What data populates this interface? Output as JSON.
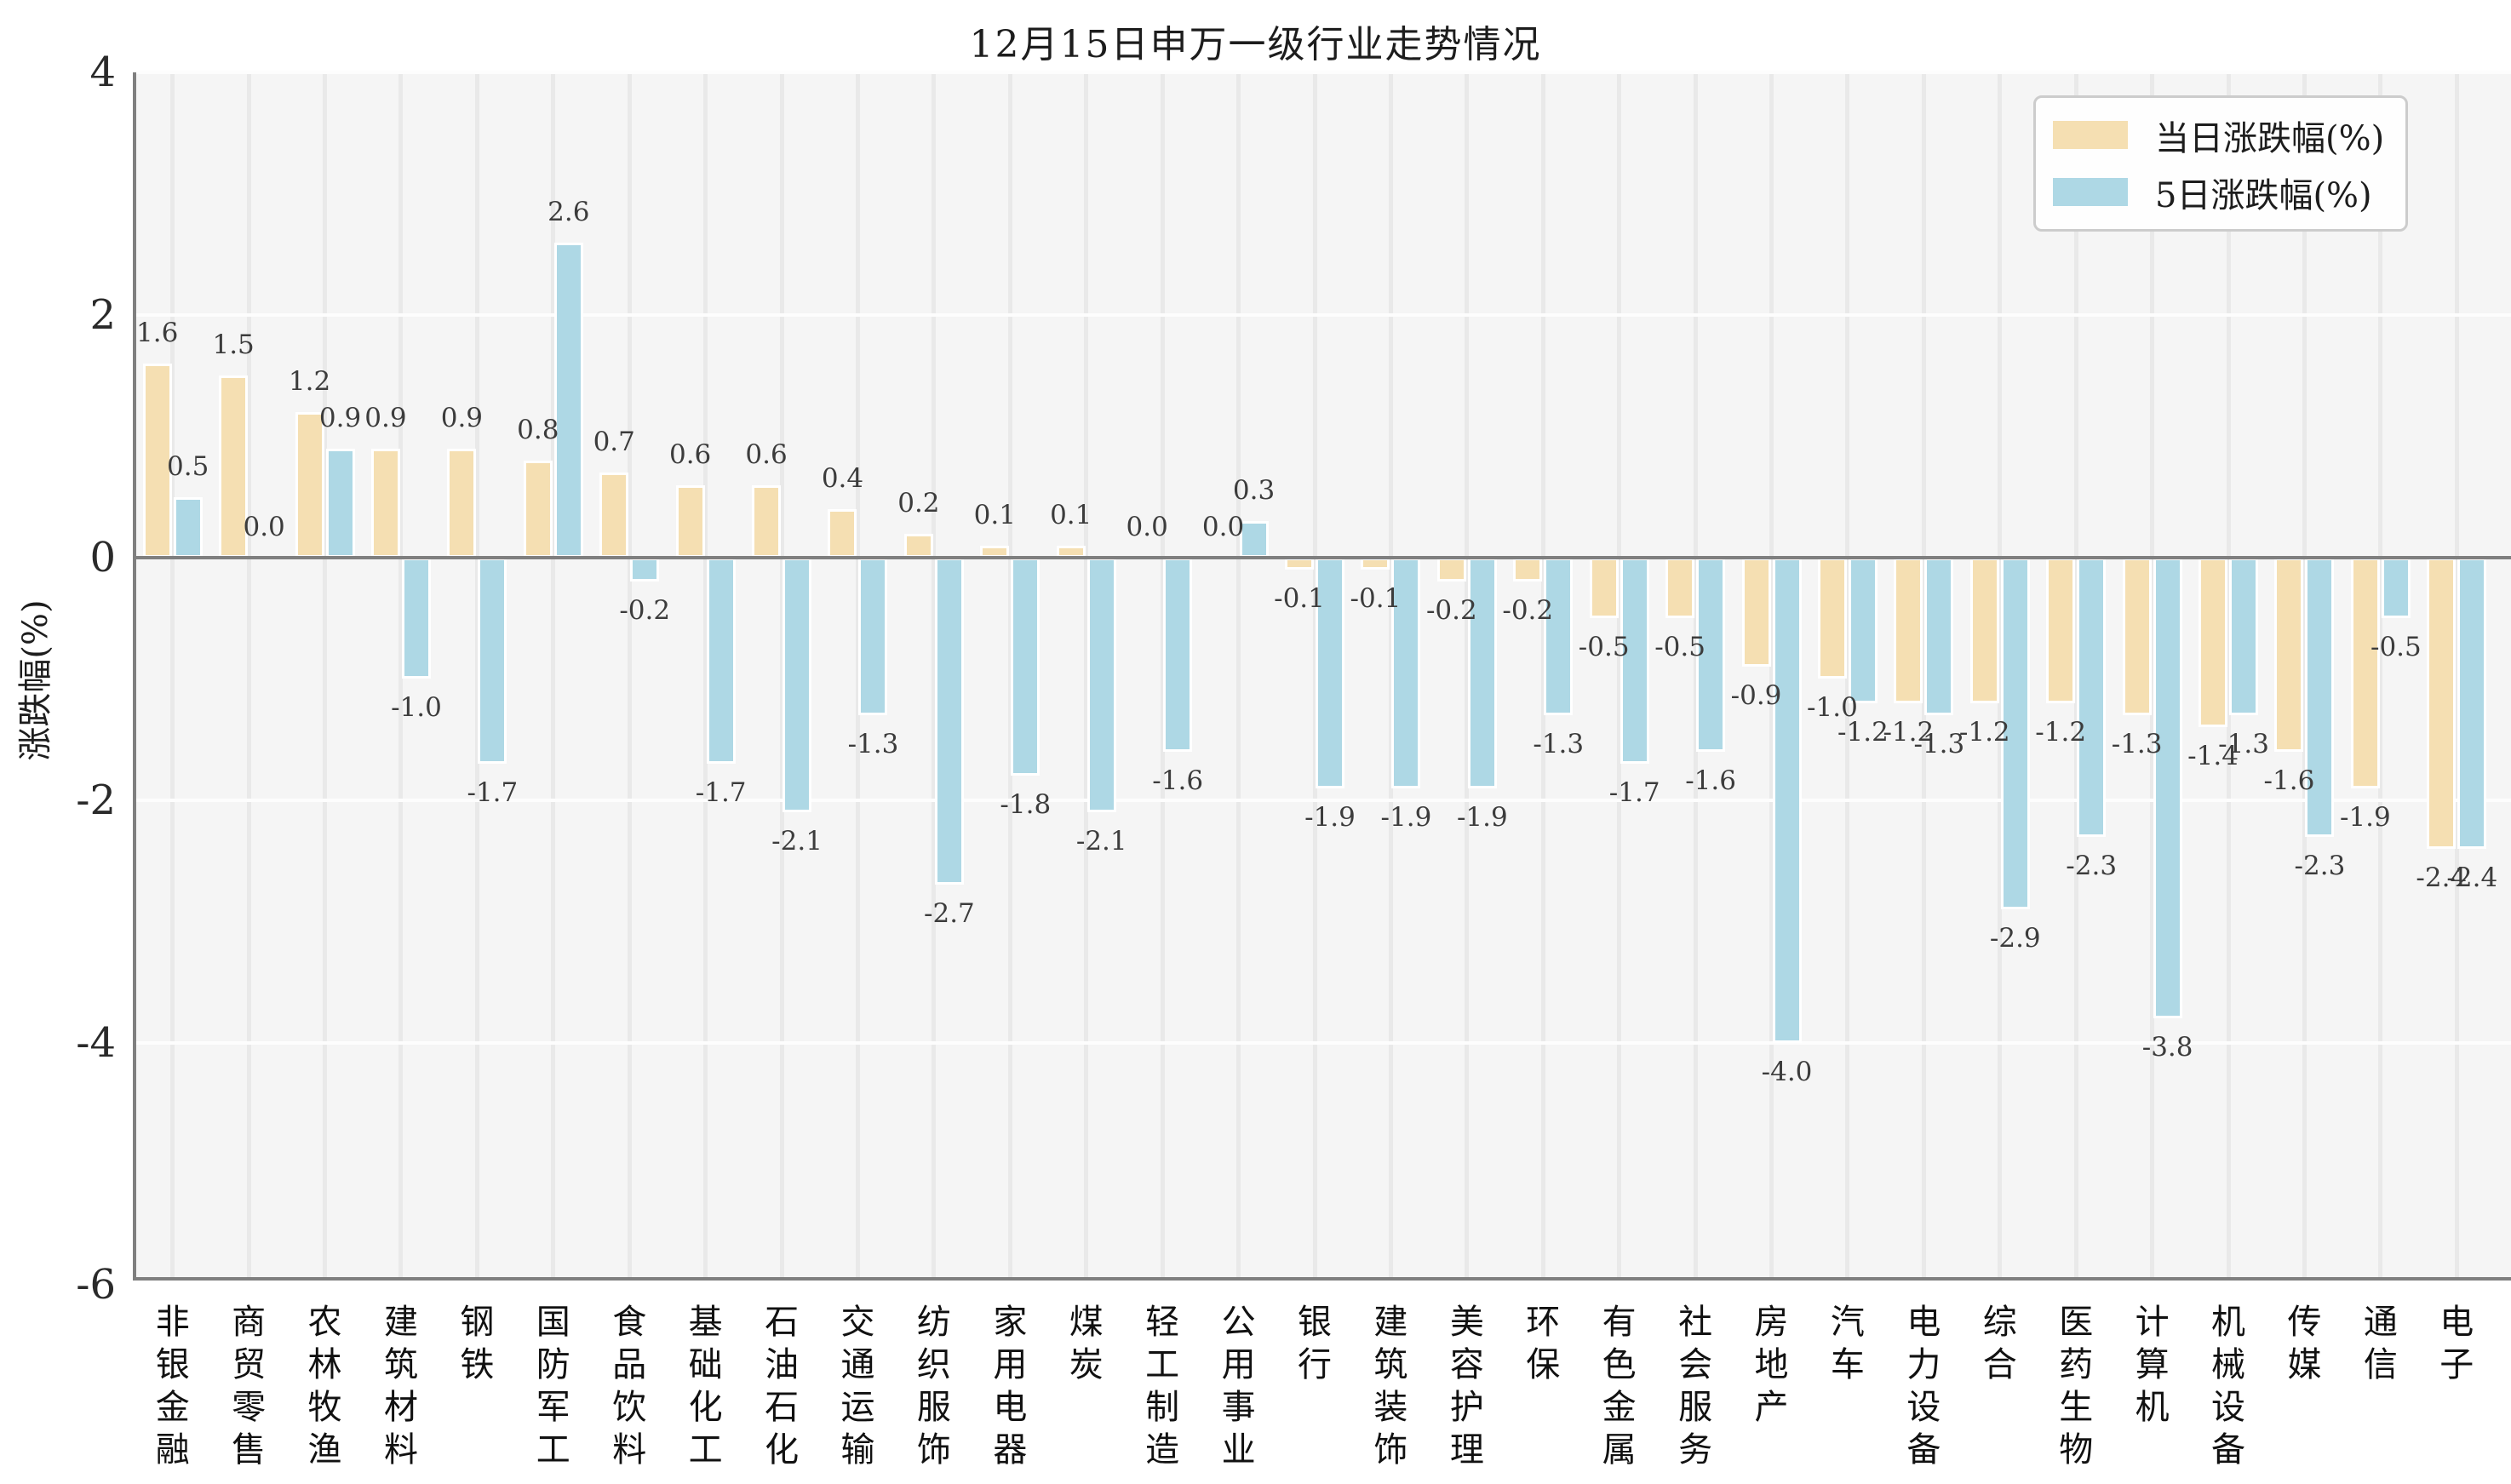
{
  "title": "12月15日申万一级行业走势情况",
  "y_axis_title": "涨跌幅(%)",
  "legend": [
    {
      "label": "当日涨跌幅(%)",
      "color": "#f5dfb2"
    },
    {
      "label": "5日涨跌幅(%)",
      "color": "#aed8e5"
    }
  ],
  "colors": {
    "daily_bar": "#f5dfb2",
    "five_day_bar": "#aed8e5",
    "plot_background": "#f5f5f5",
    "vertical_grid": "#e9e9e9",
    "horizontal_grid": "#fdfdfd",
    "axis_line": "#7f7f7f",
    "value_label_text": "#3c3c3c"
  },
  "chart_data": {
    "type": "bar",
    "title": "12月15日申万一级行业走势情况",
    "xlabel": "",
    "ylabel": "涨跌幅(%)",
    "ylim": [
      -6,
      4
    ],
    "yticks": [
      4,
      2,
      0,
      -2,
      -4,
      -6
    ],
    "grid": "vertical gridlines at each category; white horizontal gridlines at 2, -2, -4; gray zero line",
    "legend_position": "upper right",
    "bar_value_labels": "one decimal, above positive bars and below negative bars",
    "categories": [
      "非银金融",
      "商贸零售",
      "农林牧渔",
      "建筑材料",
      "钢铁",
      "国防军工",
      "食品饮料",
      "基础化工",
      "石油石化",
      "交通运输",
      "纺织服饰",
      "家用电器",
      "煤炭",
      "轻工制造",
      "公用事业",
      "银行",
      "建筑装饰",
      "美容护理",
      "环保",
      "有色金属",
      "社会服务",
      "房地产",
      "汽车",
      "电力设备",
      "综合",
      "医药生物",
      "计算机",
      "机械设备",
      "传媒",
      "通信",
      "电子"
    ],
    "series": [
      {
        "name": "当日涨跌幅(%)",
        "color": "#f5dfb2",
        "values": [
          1.6,
          1.5,
          1.2,
          0.9,
          0.9,
          0.8,
          0.7,
          0.6,
          0.6,
          0.4,
          0.2,
          0.1,
          0.1,
          0.0,
          0.0,
          -0.1,
          -0.1,
          -0.2,
          -0.2,
          -0.5,
          -0.5,
          -0.9,
          -1.0,
          -1.2,
          -1.2,
          -1.2,
          -1.3,
          -1.4,
          -1.6,
          -1.9,
          -2.4
        ]
      },
      {
        "name": "5日涨跌幅(%)",
        "color": "#aed8e5",
        "values": [
          0.5,
          0.0,
          0.9,
          -1.0,
          -1.7,
          2.6,
          -0.2,
          -1.7,
          -2.1,
          -1.3,
          -2.7,
          -1.8,
          -2.1,
          -1.6,
          0.3,
          -1.9,
          -1.9,
          -1.9,
          -1.3,
          -1.7,
          -1.6,
          -4.0,
          -1.2,
          -1.3,
          -2.9,
          -2.3,
          -3.8,
          -1.3,
          -2.3,
          -0.5,
          -2.4
        ]
      }
    ]
  }
}
